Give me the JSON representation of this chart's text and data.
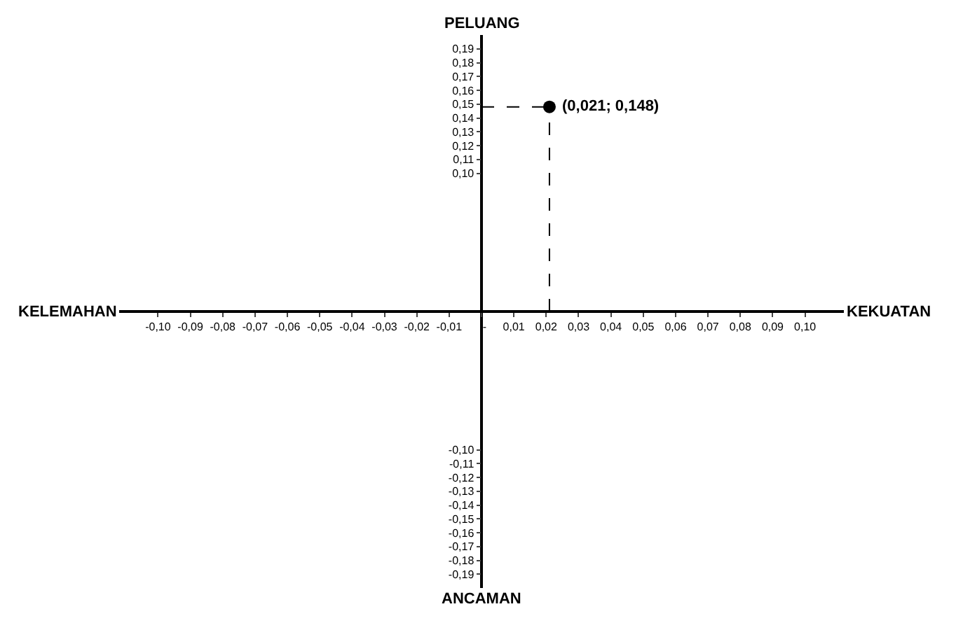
{
  "chart_data": {
    "type": "scatter",
    "x": [
      0.021
    ],
    "values": [
      0.148
    ],
    "color": "#000000",
    "marker": "circle",
    "xlim": [
      -0.112,
      0.112
    ],
    "ylim": [
      -0.2,
      0.2
    ],
    "xticks": [
      {
        "value": -0.1,
        "label": "-0,10"
      },
      {
        "value": -0.09,
        "label": "-0,09"
      },
      {
        "value": -0.08,
        "label": "-0,08"
      },
      {
        "value": -0.07,
        "label": "-0,07"
      },
      {
        "value": -0.06,
        "label": "-0,06"
      },
      {
        "value": -0.05,
        "label": "-0,05"
      },
      {
        "value": -0.04,
        "label": "-0,04"
      },
      {
        "value": -0.03,
        "label": "-0,03"
      },
      {
        "value": -0.02,
        "label": "-0,02"
      },
      {
        "value": -0.01,
        "label": "-0,01"
      },
      {
        "value": 0,
        "label": "-"
      },
      {
        "value": 0.01,
        "label": "0,01"
      },
      {
        "value": 0.02,
        "label": "0,02"
      },
      {
        "value": 0.03,
        "label": "0,03"
      },
      {
        "value": 0.04,
        "label": "0,04"
      },
      {
        "value": 0.05,
        "label": "0,05"
      },
      {
        "value": 0.06,
        "label": "0,06"
      },
      {
        "value": 0.07,
        "label": "0,07"
      },
      {
        "value": 0.08,
        "label": "0,08"
      },
      {
        "value": 0.09,
        "label": "0,09"
      },
      {
        "value": 0.1,
        "label": "0,10"
      }
    ],
    "yticks": [
      {
        "value": 0.19,
        "label": "0,19"
      },
      {
        "value": 0.18,
        "label": "0,18"
      },
      {
        "value": 0.17,
        "label": "0,17"
      },
      {
        "value": 0.16,
        "label": "0,16"
      },
      {
        "value": 0.15,
        "label": "0,15"
      },
      {
        "value": 0.14,
        "label": "0,14"
      },
      {
        "value": 0.13,
        "label": "0,13"
      },
      {
        "value": 0.12,
        "label": "0,12"
      },
      {
        "value": 0.11,
        "label": "0,11"
      },
      {
        "value": 0.1,
        "label": "0,10"
      },
      {
        "value": -0.1,
        "label": "-0,10"
      },
      {
        "value": -0.11,
        "label": "-0,11"
      },
      {
        "value": -0.12,
        "label": "-0,12"
      },
      {
        "value": -0.13,
        "label": "-0,13"
      },
      {
        "value": -0.14,
        "label": "-0,14"
      },
      {
        "value": -0.15,
        "label": "-0,15"
      },
      {
        "value": -0.16,
        "label": "-0,16"
      },
      {
        "value": -0.17,
        "label": "-0,17"
      },
      {
        "value": -0.18,
        "label": "-0,18"
      },
      {
        "value": -0.19,
        "label": "-0,19"
      }
    ],
    "annotations": [
      "PELUANG",
      "KELEMAHAN",
      "KEKUATAN",
      "ANCAMAN",
      {
        "text": "(0,021; 0,148)",
        "x": 0.021,
        "y": 0.148
      }
    ]
  }
}
